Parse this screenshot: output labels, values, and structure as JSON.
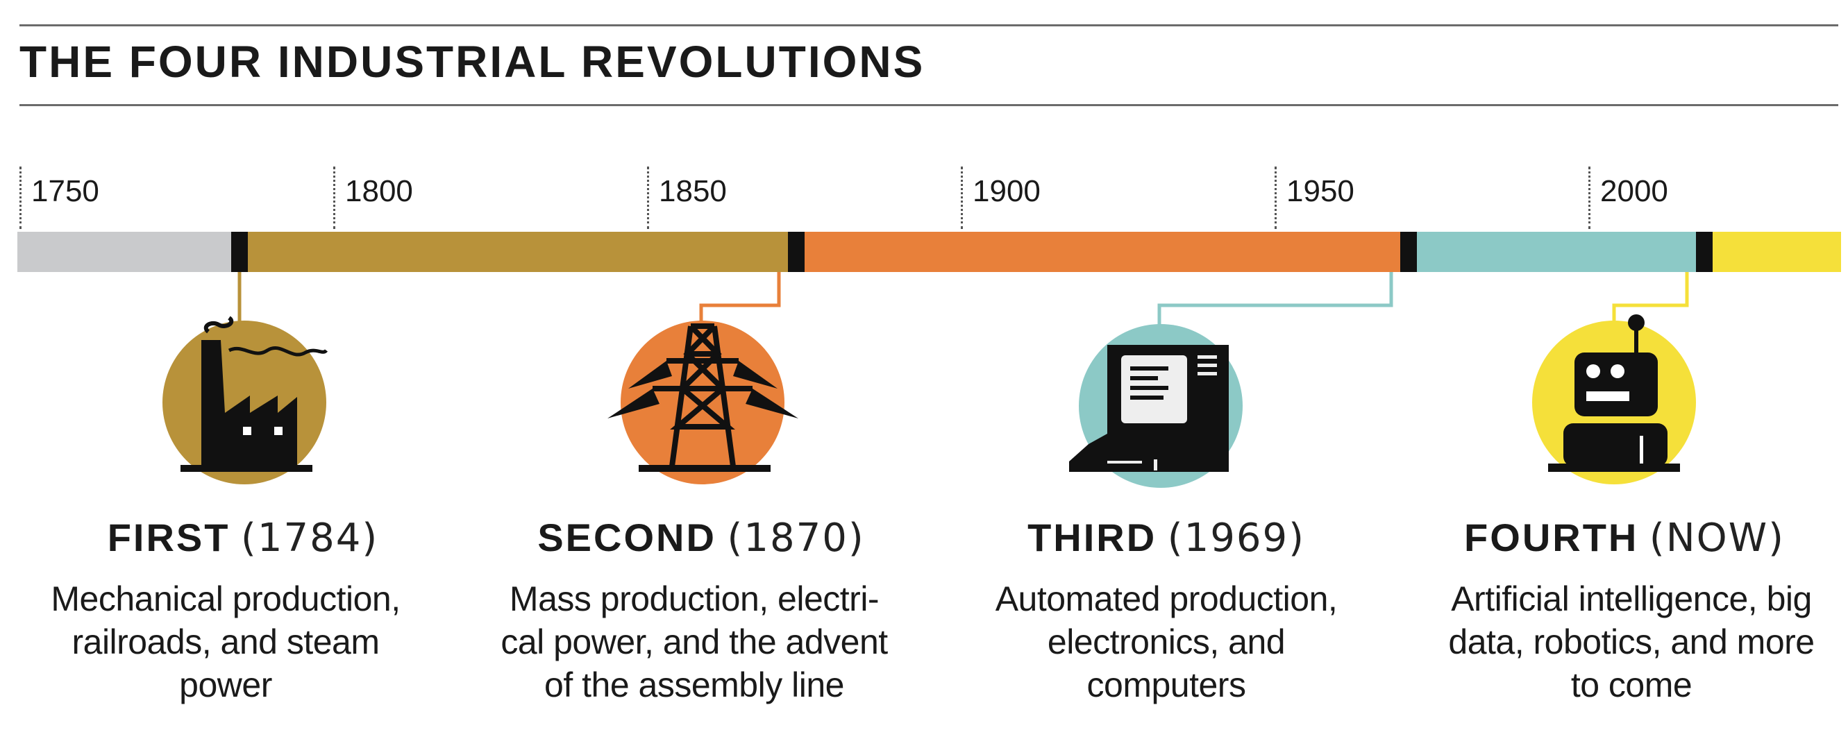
{
  "title": "THE FOUR INDUSTRIAL REVOLUTIONS",
  "years": [
    "1750",
    "1800",
    "1850",
    "1900",
    "1950",
    "2000"
  ],
  "segment_colors": {
    "pre": "#c9cacc",
    "first": "#b8923a",
    "second": "#e8803a",
    "third": "#8cc9c6",
    "fourth": "#f5e03a",
    "marker": "#111111"
  },
  "timeline": {
    "start_year": 1750,
    "end_year": 2040,
    "revolution_years": [
      1784,
      1870,
      1969,
      2016
    ]
  },
  "revolutions": [
    {
      "name": "FIRST",
      "date": "(1784)",
      "icon": "factory-icon",
      "color": "#b8923a",
      "desc": [
        "Mechanical production,",
        "railroads, and steam",
        "power"
      ]
    },
    {
      "name": "SECOND",
      "date": "(1870)",
      "icon": "power-tower-icon",
      "color": "#e8803a",
      "desc": [
        "Mass production, electri-",
        "cal power, and the advent",
        "of the assembly line"
      ]
    },
    {
      "name": "THIRD",
      "date": "(1969)",
      "icon": "computer-icon",
      "color": "#8cc9c6",
      "desc": [
        "Automated production,",
        "electronics, and",
        "computers"
      ]
    },
    {
      "name": "FOURTH",
      "date": "(NOW)",
      "icon": "robot-icon",
      "color": "#f5e03a",
      "desc": [
        "Artificial intelligence, big",
        "data, robotics, and more",
        "to come"
      ]
    }
  ]
}
